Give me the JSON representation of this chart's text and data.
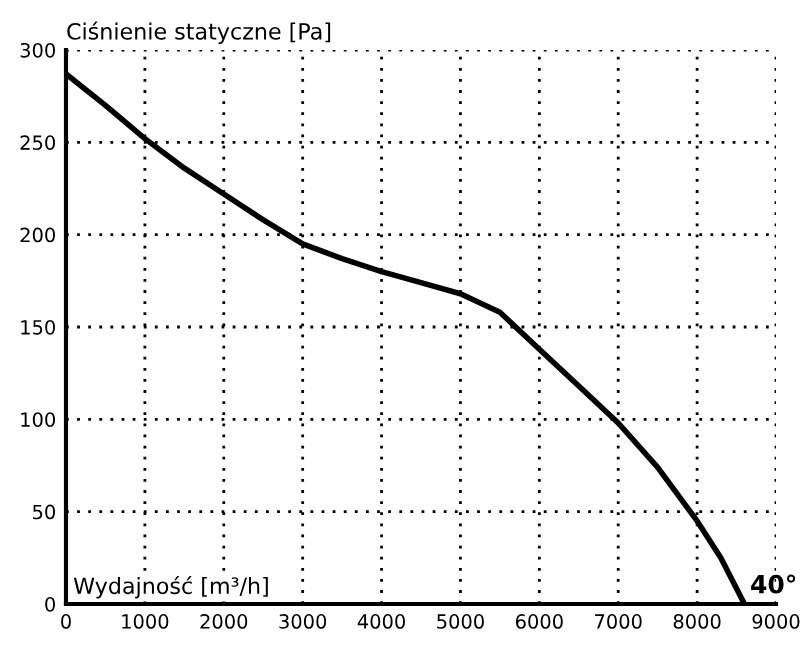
{
  "chart_data": {
    "type": "line",
    "xlabel": "Wydajność [m³/h]",
    "ylabel": "Ciśnienie statyczne [Pa]",
    "annotations": [
      {
        "text": "40°",
        "x": 8600,
        "y": 0
      }
    ],
    "x": [
      0,
      500,
      1000,
      1500,
      2000,
      2500,
      3000,
      3500,
      4000,
      4500,
      5000,
      5500,
      6000,
      6500,
      7000,
      7500,
      8000,
      8300,
      8600
    ],
    "series": [
      {
        "color": "#000000",
        "values": [
          287,
          270,
          252,
          236,
          222,
          208,
          195,
          187,
          180,
          174,
          168,
          158,
          138,
          118,
          98,
          74,
          45,
          25,
          0
        ]
      }
    ],
    "xlim": [
      0,
      9000
    ],
    "xticks": [
      0,
      1000,
      2000,
      3000,
      4000,
      5000,
      6000,
      7000,
      8000,
      9000
    ],
    "ylim": [
      0,
      300
    ],
    "yticks": [
      0,
      50,
      100,
      150,
      200,
      250,
      300
    ],
    "grid": true,
    "line_style": "solid",
    "marker": "none"
  }
}
